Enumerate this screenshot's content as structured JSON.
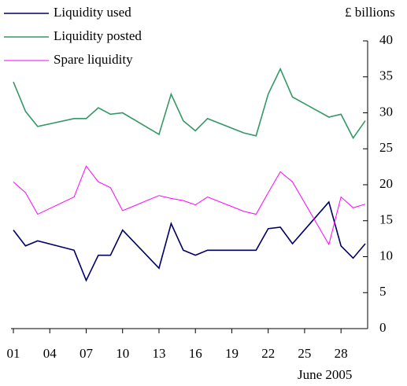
{
  "chart_data": {
    "type": "line",
    "y_axis_label": "£ billions",
    "x_axis_label": "June 2005",
    "x": [
      1,
      2,
      3,
      6,
      7,
      8,
      9,
      10,
      13,
      14,
      15,
      16,
      17,
      20,
      21,
      22,
      23,
      24,
      27,
      28,
      29,
      30
    ],
    "series": [
      {
        "name": "Liquidity used",
        "color": "#000066",
        "values": [
          13.7,
          11.5,
          12.2,
          10.9,
          6.7,
          10.2,
          10.2,
          13.7,
          8.4,
          14.6,
          10.9,
          10.2,
          10.9,
          10.9,
          10.9,
          13.9,
          14.1,
          11.8,
          17.6,
          11.5,
          9.8,
          11.8
        ]
      },
      {
        "name": "Liquidity posted",
        "color": "#339966",
        "values": [
          34.3,
          30.2,
          28.1,
          29.2,
          29.2,
          30.7,
          29.8,
          30.0,
          27.0,
          32.6,
          28.9,
          27.5,
          29.2,
          27.2,
          26.8,
          32.6,
          36.1,
          32.2,
          29.4,
          29.8,
          26.5,
          28.9
        ]
      },
      {
        "name": "Spare liquidity",
        "color": "#ff00ff",
        "values": [
          20.4,
          18.9,
          15.9,
          18.3,
          22.6,
          20.4,
          19.6,
          16.4,
          18.5,
          18.1,
          17.8,
          17.2,
          18.3,
          16.3,
          15.9,
          18.9,
          21.8,
          20.4,
          11.7,
          18.3,
          16.8,
          17.3
        ]
      }
    ],
    "xlim": [
      1,
      30
    ],
    "xticks": [
      {
        "value": 1,
        "label": "01"
      },
      {
        "value": 4,
        "label": "04"
      },
      {
        "value": 7,
        "label": "07"
      },
      {
        "value": 10,
        "label": "10"
      },
      {
        "value": 13,
        "label": "13"
      },
      {
        "value": 16,
        "label": "16"
      },
      {
        "value": 19,
        "label": "19"
      },
      {
        "value": 22,
        "label": "22"
      },
      {
        "value": 25,
        "label": "25"
      },
      {
        "value": 28,
        "label": "28"
      }
    ],
    "ylim": [
      0,
      40
    ],
    "yticks": [
      0,
      5,
      10,
      15,
      20,
      25,
      30,
      35,
      40
    ],
    "legend": "top-left"
  }
}
